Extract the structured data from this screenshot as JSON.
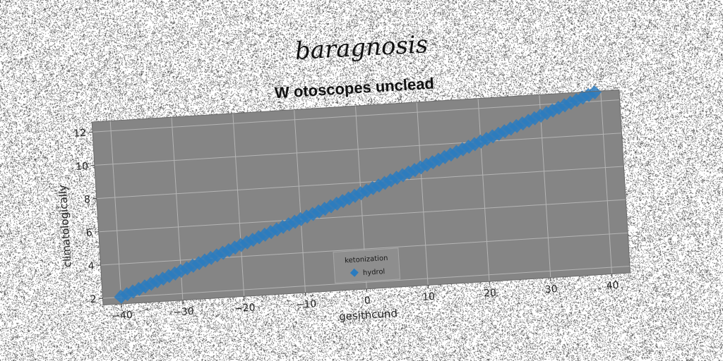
{
  "chart_data": {
    "type": "scatter",
    "suptitle": "baragnosis",
    "title": "W otoscopes unclead",
    "xlabel": "gesithcund",
    "ylabel": "climatologically",
    "xlim": [
      -43,
      43
    ],
    "ylim": [
      1.6,
      12.6
    ],
    "xticks": [
      -40,
      -30,
      -20,
      -10,
      0,
      10,
      20,
      30,
      40
    ],
    "yticks": [
      2,
      4,
      6,
      8,
      10,
      12
    ],
    "grid": true,
    "legend": {
      "title": "ketonization",
      "placement": "lower-center"
    },
    "series": [
      {
        "name": "hydrol",
        "color": "#2a7bbf",
        "marker": "diamond",
        "x_start": -40,
        "x_end": 39,
        "x_step": 1,
        "slope": 0.133,
        "intercept": 7.35
      }
    ]
  },
  "colors": {
    "axes_bg": "#858585",
    "grid": "#b5b5b5",
    "marker": "#2a7bbf"
  }
}
